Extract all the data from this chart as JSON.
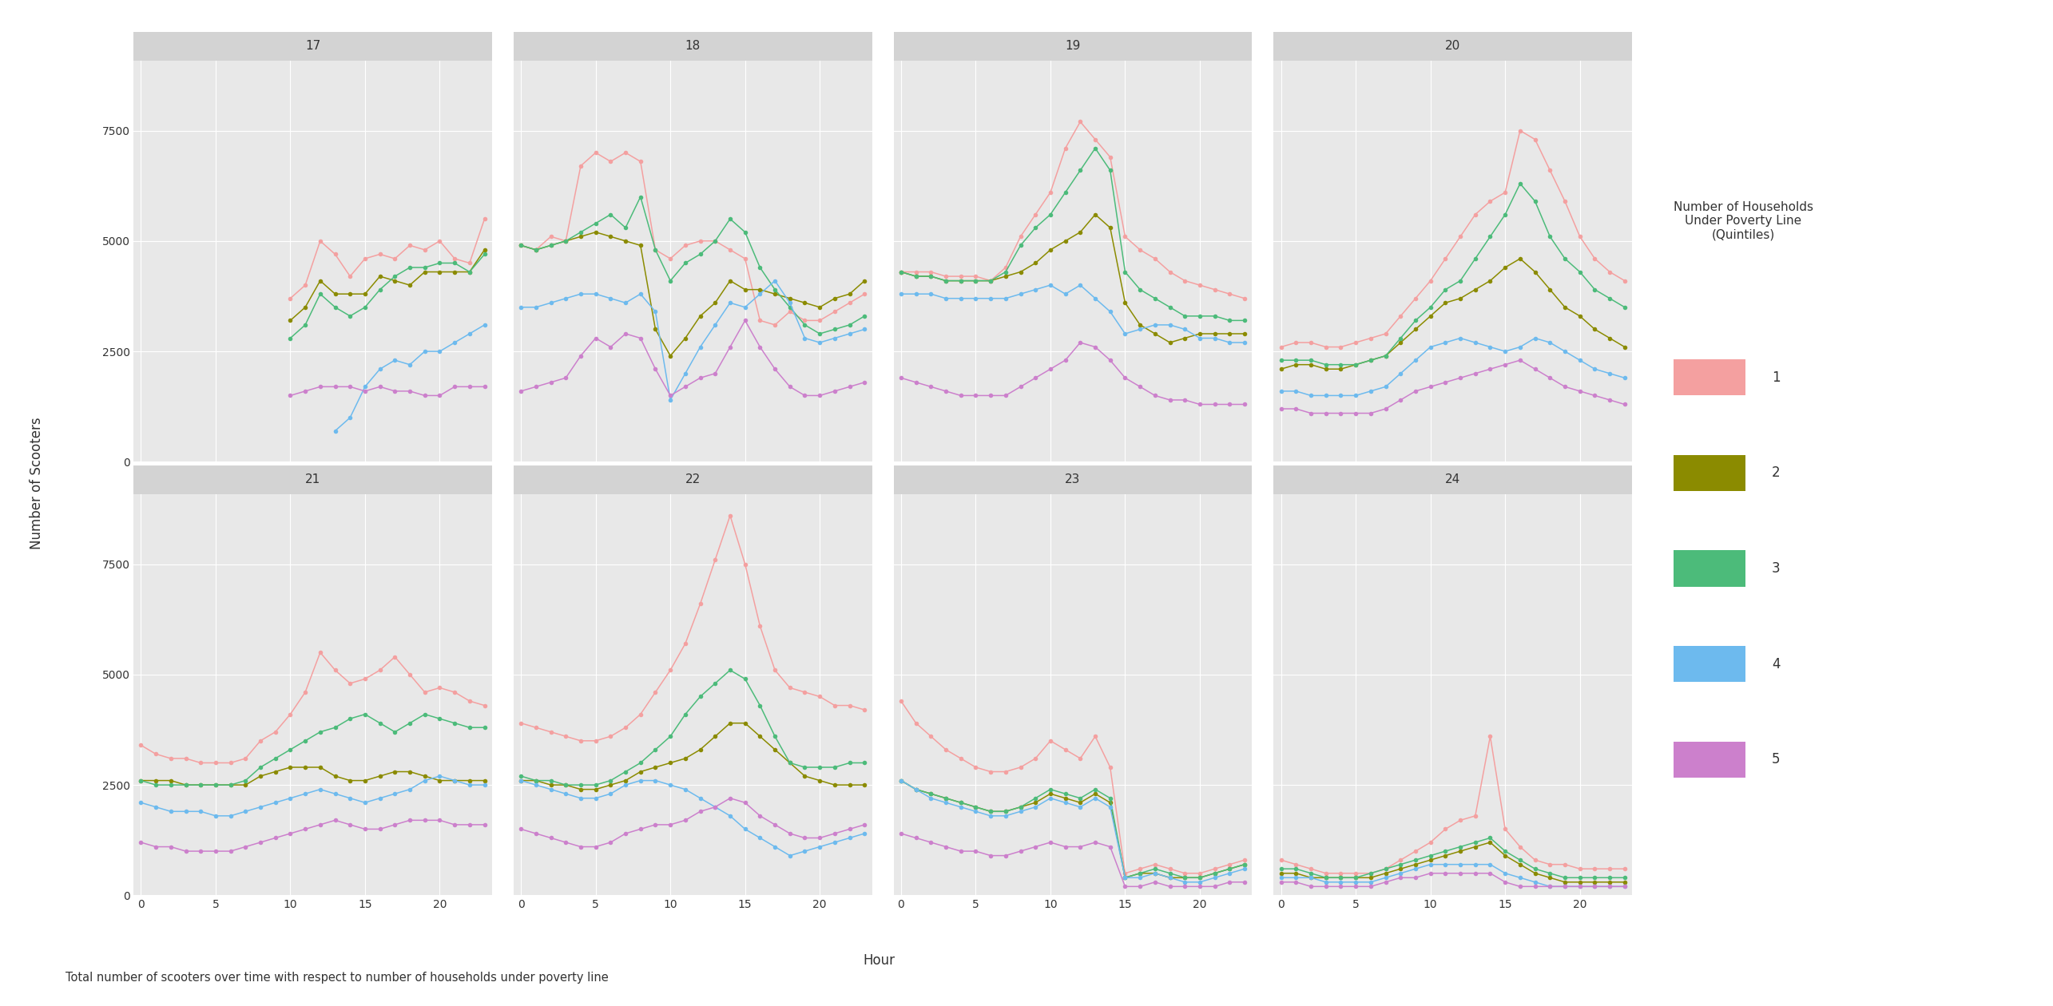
{
  "panels": [
    17,
    18,
    19,
    20,
    21,
    22,
    23,
    24
  ],
  "hours": [
    0,
    1,
    2,
    3,
    4,
    5,
    6,
    7,
    8,
    9,
    10,
    11,
    12,
    13,
    14,
    15,
    16,
    17,
    18,
    19,
    20,
    21,
    22,
    23
  ],
  "colors": {
    "1": "#F4A0A0",
    "2": "#8B8B00",
    "3": "#4CBB7A",
    "4": "#6DBAEE",
    "5": "#CC80CC"
  },
  "series_labels": [
    "1",
    "2",
    "3",
    "4",
    "5"
  ],
  "ylabel": "Number of Scooters",
  "xlabel": "Hour",
  "legend_title": "Number of Households\nUnder Poverty Line\n(Quintiles)",
  "caption": "Total number of scooters over time with respect to number of households under poverty line",
  "ylim": [
    0,
    9000
  ],
  "yticks": [
    0,
    2500,
    5000,
    7500
  ],
  "xticks": [
    0,
    5,
    10,
    15,
    20
  ],
  "panel_bg": "#E8E8E8",
  "strip_bg": "#D3D3D3",
  "grid_color": "#FFFFFF",
  "data": {
    "17": {
      "1": [
        null,
        null,
        null,
        null,
        null,
        null,
        null,
        null,
        null,
        null,
        3700,
        4000,
        5000,
        4700,
        4200,
        4600,
        4700,
        4600,
        4900,
        4800,
        5000,
        4600,
        4500,
        5500
      ],
      "2": [
        null,
        null,
        null,
        null,
        null,
        null,
        null,
        null,
        null,
        null,
        3200,
        3500,
        4100,
        3800,
        3800,
        3800,
        4200,
        4100,
        4000,
        4300,
        4300,
        4300,
        4300,
        4800
      ],
      "3": [
        null,
        null,
        null,
        null,
        null,
        null,
        null,
        null,
        null,
        null,
        2800,
        3100,
        3800,
        3500,
        3300,
        3500,
        3900,
        4200,
        4400,
        4400,
        4500,
        4500,
        4300,
        4700
      ],
      "4": [
        null,
        null,
        null,
        null,
        null,
        null,
        null,
        null,
        null,
        null,
        null,
        null,
        null,
        700,
        1000,
        1700,
        2100,
        2300,
        2200,
        2500,
        2500,
        2700,
        2900,
        3100
      ],
      "5": [
        null,
        null,
        null,
        null,
        null,
        null,
        null,
        null,
        null,
        null,
        1500,
        1600,
        1700,
        1700,
        1700,
        1600,
        1700,
        1600,
        1600,
        1500,
        1500,
        1700,
        1700,
        1700
      ]
    },
    "18": {
      "1": [
        4900,
        4800,
        5100,
        5000,
        6700,
        7000,
        6800,
        7000,
        6800,
        4800,
        4600,
        4900,
        5000,
        5000,
        4800,
        4600,
        3200,
        3100,
        3400,
        3200,
        3200,
        3400,
        3600,
        3800
      ],
      "2": [
        4900,
        4800,
        4900,
        5000,
        5100,
        5200,
        5100,
        5000,
        4900,
        3000,
        2400,
        2800,
        3300,
        3600,
        4100,
        3900,
        3900,
        3800,
        3700,
        3600,
        3500,
        3700,
        3800,
        4100
      ],
      "3": [
        4900,
        4800,
        4900,
        5000,
        5200,
        5400,
        5600,
        5300,
        6000,
        4800,
        4100,
        4500,
        4700,
        5000,
        5500,
        5200,
        4400,
        3900,
        3500,
        3100,
        2900,
        3000,
        3100,
        3300
      ],
      "4": [
        3500,
        3500,
        3600,
        3700,
        3800,
        3800,
        3700,
        3600,
        3800,
        3400,
        1400,
        2000,
        2600,
        3100,
        3600,
        3500,
        3800,
        4100,
        3600,
        2800,
        2700,
        2800,
        2900,
        3000
      ],
      "5": [
        1600,
        1700,
        1800,
        1900,
        2400,
        2800,
        2600,
        2900,
        2800,
        2100,
        1500,
        1700,
        1900,
        2000,
        2600,
        3200,
        2600,
        2100,
        1700,
        1500,
        1500,
        1600,
        1700,
        1800
      ]
    },
    "19": {
      "1": [
        4300,
        4300,
        4300,
        4200,
        4200,
        4200,
        4100,
        4400,
        5100,
        5600,
        6100,
        7100,
        7700,
        7300,
        6900,
        5100,
        4800,
        4600,
        4300,
        4100,
        4000,
        3900,
        3800,
        3700
      ],
      "2": [
        4300,
        4200,
        4200,
        4100,
        4100,
        4100,
        4100,
        4200,
        4300,
        4500,
        4800,
        5000,
        5200,
        5600,
        5300,
        3600,
        3100,
        2900,
        2700,
        2800,
        2900,
        2900,
        2900,
        2900
      ],
      "3": [
        4300,
        4200,
        4200,
        4100,
        4100,
        4100,
        4100,
        4300,
        4900,
        5300,
        5600,
        6100,
        6600,
        7100,
        6600,
        4300,
        3900,
        3700,
        3500,
        3300,
        3300,
        3300,
        3200,
        3200
      ],
      "4": [
        3800,
        3800,
        3800,
        3700,
        3700,
        3700,
        3700,
        3700,
        3800,
        3900,
        4000,
        3800,
        4000,
        3700,
        3400,
        2900,
        3000,
        3100,
        3100,
        3000,
        2800,
        2800,
        2700,
        2700
      ],
      "5": [
        1900,
        1800,
        1700,
        1600,
        1500,
        1500,
        1500,
        1500,
        1700,
        1900,
        2100,
        2300,
        2700,
        2600,
        2300,
        1900,
        1700,
        1500,
        1400,
        1400,
        1300,
        1300,
        1300,
        1300
      ]
    },
    "20": {
      "1": [
        2600,
        2700,
        2700,
        2600,
        2600,
        2700,
        2800,
        2900,
        3300,
        3700,
        4100,
        4600,
        5100,
        5600,
        5900,
        6100,
        7500,
        7300,
        6600,
        5900,
        5100,
        4600,
        4300,
        4100
      ],
      "2": [
        2100,
        2200,
        2200,
        2100,
        2100,
        2200,
        2300,
        2400,
        2700,
        3000,
        3300,
        3600,
        3700,
        3900,
        4100,
        4400,
        4600,
        4300,
        3900,
        3500,
        3300,
        3000,
        2800,
        2600
      ],
      "3": [
        2300,
        2300,
        2300,
        2200,
        2200,
        2200,
        2300,
        2400,
        2800,
        3200,
        3500,
        3900,
        4100,
        4600,
        5100,
        5600,
        6300,
        5900,
        5100,
        4600,
        4300,
        3900,
        3700,
        3500
      ],
      "4": [
        1600,
        1600,
        1500,
        1500,
        1500,
        1500,
        1600,
        1700,
        2000,
        2300,
        2600,
        2700,
        2800,
        2700,
        2600,
        2500,
        2600,
        2800,
        2700,
        2500,
        2300,
        2100,
        2000,
        1900
      ],
      "5": [
        1200,
        1200,
        1100,
        1100,
        1100,
        1100,
        1100,
        1200,
        1400,
        1600,
        1700,
        1800,
        1900,
        2000,
        2100,
        2200,
        2300,
        2100,
        1900,
        1700,
        1600,
        1500,
        1400,
        1300
      ]
    },
    "21": {
      "1": [
        3400,
        3200,
        3100,
        3100,
        3000,
        3000,
        3000,
        3100,
        3500,
        3700,
        4100,
        4600,
        5500,
        5100,
        4800,
        4900,
        5100,
        5400,
        5000,
        4600,
        4700,
        4600,
        4400,
        4300
      ],
      "2": [
        2600,
        2600,
        2600,
        2500,
        2500,
        2500,
        2500,
        2500,
        2700,
        2800,
        2900,
        2900,
        2900,
        2700,
        2600,
        2600,
        2700,
        2800,
        2800,
        2700,
        2600,
        2600,
        2600,
        2600
      ],
      "3": [
        2600,
        2500,
        2500,
        2500,
        2500,
        2500,
        2500,
        2600,
        2900,
        3100,
        3300,
        3500,
        3700,
        3800,
        4000,
        4100,
        3900,
        3700,
        3900,
        4100,
        4000,
        3900,
        3800,
        3800
      ],
      "4": [
        2100,
        2000,
        1900,
        1900,
        1900,
        1800,
        1800,
        1900,
        2000,
        2100,
        2200,
        2300,
        2400,
        2300,
        2200,
        2100,
        2200,
        2300,
        2400,
        2600,
        2700,
        2600,
        2500,
        2500
      ],
      "5": [
        1200,
        1100,
        1100,
        1000,
        1000,
        1000,
        1000,
        1100,
        1200,
        1300,
        1400,
        1500,
        1600,
        1700,
        1600,
        1500,
        1500,
        1600,
        1700,
        1700,
        1700,
        1600,
        1600,
        1600
      ]
    },
    "22": {
      "1": [
        3900,
        3800,
        3700,
        3600,
        3500,
        3500,
        3600,
        3800,
        4100,
        4600,
        5100,
        5700,
        6600,
        7600,
        8600,
        7500,
        6100,
        5100,
        4700,
        4600,
        4500,
        4300,
        4300,
        4200
      ],
      "2": [
        2600,
        2600,
        2500,
        2500,
        2400,
        2400,
        2500,
        2600,
        2800,
        2900,
        3000,
        3100,
        3300,
        3600,
        3900,
        3900,
        3600,
        3300,
        3000,
        2700,
        2600,
        2500,
        2500,
        2500
      ],
      "3": [
        2700,
        2600,
        2600,
        2500,
        2500,
        2500,
        2600,
        2800,
        3000,
        3300,
        3600,
        4100,
        4500,
        4800,
        5100,
        4900,
        4300,
        3600,
        3000,
        2900,
        2900,
        2900,
        3000,
        3000
      ],
      "4": [
        2600,
        2500,
        2400,
        2300,
        2200,
        2200,
        2300,
        2500,
        2600,
        2600,
        2500,
        2400,
        2200,
        2000,
        1800,
        1500,
        1300,
        1100,
        900,
        1000,
        1100,
        1200,
        1300,
        1400
      ],
      "5": [
        1500,
        1400,
        1300,
        1200,
        1100,
        1100,
        1200,
        1400,
        1500,
        1600,
        1600,
        1700,
        1900,
        2000,
        2200,
        2100,
        1800,
        1600,
        1400,
        1300,
        1300,
        1400,
        1500,
        1600
      ]
    },
    "23": {
      "1": [
        4400,
        3900,
        3600,
        3300,
        3100,
        2900,
        2800,
        2800,
        2900,
        3100,
        3500,
        3300,
        3100,
        3600,
        2900,
        500,
        600,
        700,
        600,
        500,
        500,
        600,
        700,
        800
      ],
      "2": [
        2600,
        2400,
        2300,
        2200,
        2100,
        2000,
        1900,
        1900,
        2000,
        2100,
        2300,
        2200,
        2100,
        2300,
        2100,
        400,
        500,
        500,
        400,
        400,
        400,
        500,
        600,
        700
      ],
      "3": [
        2600,
        2400,
        2300,
        2200,
        2100,
        2000,
        1900,
        1900,
        2000,
        2200,
        2400,
        2300,
        2200,
        2400,
        2200,
        400,
        500,
        600,
        500,
        400,
        400,
        500,
        600,
        700
      ],
      "4": [
        2600,
        2400,
        2200,
        2100,
        2000,
        1900,
        1800,
        1800,
        1900,
        2000,
        2200,
        2100,
        2000,
        2200,
        2000,
        400,
        400,
        500,
        400,
        300,
        300,
        400,
        500,
        600
      ],
      "5": [
        1400,
        1300,
        1200,
        1100,
        1000,
        1000,
        900,
        900,
        1000,
        1100,
        1200,
        1100,
        1100,
        1200,
        1100,
        200,
        200,
        300,
        200,
        200,
        200,
        200,
        300,
        300
      ]
    },
    "24": {
      "1": [
        800,
        700,
        600,
        500,
        500,
        500,
        500,
        600,
        800,
        1000,
        1200,
        1500,
        1700,
        1800,
        3600,
        1500,
        1100,
        800,
        700,
        700,
        600,
        600,
        600,
        600
      ],
      "2": [
        500,
        500,
        400,
        400,
        400,
        400,
        400,
        500,
        600,
        700,
        800,
        900,
        1000,
        1100,
        1200,
        900,
        700,
        500,
        400,
        300,
        300,
        300,
        300,
        300
      ],
      "3": [
        600,
        600,
        500,
        400,
        400,
        400,
        500,
        600,
        700,
        800,
        900,
        1000,
        1100,
        1200,
        1300,
        1000,
        800,
        600,
        500,
        400,
        400,
        400,
        400,
        400
      ],
      "4": [
        400,
        400,
        400,
        300,
        300,
        300,
        300,
        400,
        500,
        600,
        700,
        700,
        700,
        700,
        700,
        500,
        400,
        300,
        200,
        200,
        200,
        200,
        200,
        200
      ],
      "5": [
        300,
        300,
        200,
        200,
        200,
        200,
        200,
        300,
        400,
        400,
        500,
        500,
        500,
        500,
        500,
        300,
        200,
        200,
        200,
        200,
        200,
        200,
        200,
        200
      ]
    }
  }
}
